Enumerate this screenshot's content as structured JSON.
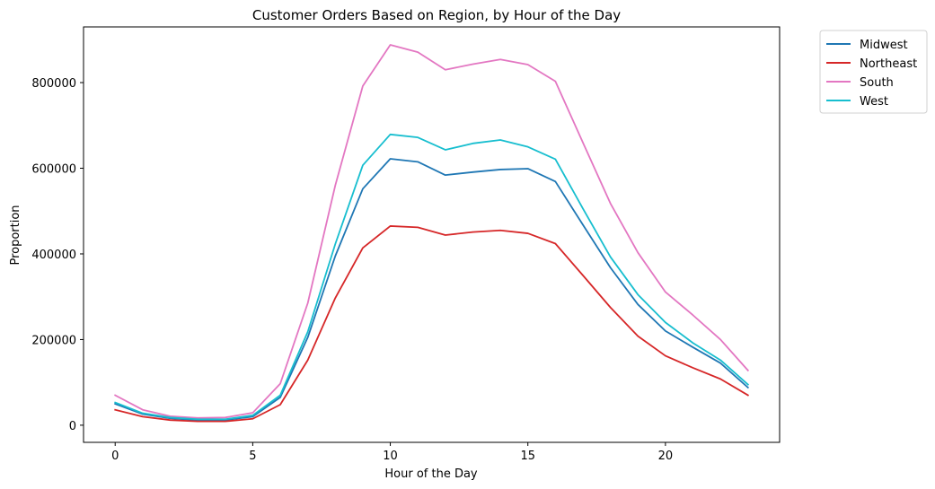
{
  "chart_data": {
    "type": "line",
    "title": "Customer Orders Based on Region, by Hour of the Day",
    "xlabel": "Hour of the Day",
    "ylabel": "Proportion",
    "xlim": [
      -1.15,
      24.15
    ],
    "ylim": [
      -40000,
      930000
    ],
    "xticks": [
      0,
      5,
      10,
      15,
      20
    ],
    "yticks": [
      0,
      200000,
      400000,
      600000,
      800000
    ],
    "grid": false,
    "legend_position": "outside-top-right",
    "x": [
      0,
      1,
      2,
      3,
      4,
      5,
      6,
      7,
      8,
      9,
      10,
      11,
      12,
      13,
      14,
      15,
      16,
      17,
      18,
      19,
      20,
      21,
      22,
      23
    ],
    "series": [
      {
        "name": "Midwest",
        "color": "#1f77b4",
        "values": [
          50000,
          26000,
          16000,
          12000,
          12000,
          20000,
          65000,
          205000,
          395000,
          552000,
          622000,
          615000,
          584000,
          591000,
          597000,
          599000,
          569000,
          468000,
          368000,
          282000,
          220000,
          182000,
          145000,
          88000
        ]
      },
      {
        "name": "Northeast",
        "color": "#d62728",
        "values": [
          36000,
          20000,
          12000,
          9000,
          9000,
          15000,
          48000,
          152000,
          297000,
          414000,
          465000,
          462000,
          444000,
          451000,
          455000,
          448000,
          424000,
          350000,
          275000,
          208000,
          162000,
          134000,
          108000,
          70000
        ]
      },
      {
        "name": "South",
        "color": "#e377c2",
        "values": [
          70000,
          36000,
          21000,
          17000,
          18000,
          29000,
          97000,
          285000,
          560000,
          792000,
          888000,
          871000,
          830000,
          843000,
          854000,
          842000,
          803000,
          660000,
          518000,
          403000,
          311000,
          257000,
          200000,
          128000
        ]
      },
      {
        "name": "West",
        "color": "#17becf",
        "values": [
          53000,
          28000,
          18000,
          14000,
          14000,
          23000,
          70000,
          218000,
          423000,
          607000,
          679000,
          672000,
          643000,
          658000,
          666000,
          650000,
          621000,
          506000,
          393000,
          305000,
          240000,
          192000,
          152000,
          95000
        ]
      }
    ]
  }
}
